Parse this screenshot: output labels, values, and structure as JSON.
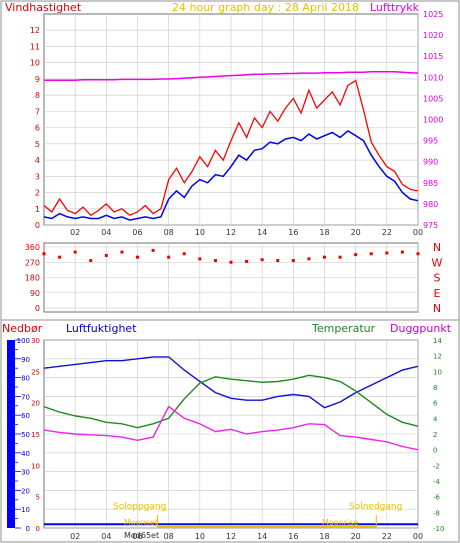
{
  "header": {
    "title": "24 hour graph day : 28 April 2018",
    "left_label": "Vindhastighet",
    "right_label": "Lufttrykk"
  },
  "lower_header": {
    "rain_label": "Nedbør",
    "humidity_label": "Luftfuktighet",
    "temp_label": "Temperatur",
    "dew_label": "Duggpunkt"
  },
  "sun_labels": {
    "rise": "Soloppgang",
    "set": "Solnedgang",
    "moon_rise": "Moonset",
    "moon_set": "Moonrise",
    "moon_marker": "Mod65et"
  },
  "colors": {
    "gust": "#ff0000",
    "wind_avg": "#0000ee",
    "pressure": "#ee00ee",
    "direction": "#ee0000",
    "humidity": "#1010d0",
    "temperature": "#208820",
    "dewpoint": "#ee22ee",
    "rain": "#0000ff",
    "sun": "#e6c000",
    "frame": "#707070",
    "grid": "#c8c8c8"
  },
  "chart_data": [
    {
      "type": "line",
      "name": "wind",
      "x_ticks": [
        "02",
        "04",
        "06",
        "08",
        "10",
        "12",
        "14",
        "16",
        "18",
        "20",
        "22",
        "00"
      ],
      "y_left_ticks": [
        "0",
        "1",
        "2",
        "3",
        "4",
        "5",
        "6",
        "7",
        "8",
        "9",
        "10",
        "11",
        "12"
      ],
      "y_right_ticks": [
        "975",
        "980",
        "985",
        "990",
        "995",
        "1000",
        "1005",
        "1010",
        "1015",
        "1020",
        "1025"
      ],
      "ylim_left": [
        0,
        13
      ],
      "ylim_right": [
        975,
        1025
      ],
      "x_hours": [
        0,
        0.5,
        1,
        1.5,
        2,
        2.5,
        3,
        3.5,
        4,
        4.5,
        5,
        5.5,
        6,
        6.5,
        7,
        7.5,
        8,
        8.5,
        9,
        9.5,
        10,
        10.5,
        11,
        11.5,
        12,
        12.5,
        13,
        13.5,
        14,
        14.5,
        15,
        15.5,
        16,
        16.5,
        17,
        17.5,
        18,
        18.5,
        19,
        19.5,
        20,
        20.5,
        21,
        21.5,
        22,
        22.5,
        23,
        23.5,
        24
      ],
      "series": [
        {
          "key": "gust",
          "values": [
            1.2,
            0.8,
            1.6,
            0.9,
            0.7,
            1.1,
            0.6,
            0.9,
            1.3,
            0.8,
            1.0,
            0.6,
            0.8,
            1.2,
            0.7,
            1.0,
            2.8,
            3.5,
            2.6,
            3.3,
            4.2,
            3.6,
            4.6,
            4.0,
            5.2,
            6.3,
            5.4,
            6.6,
            6.0,
            7.0,
            6.4,
            7.2,
            7.8,
            6.9,
            8.3,
            7.2,
            7.7,
            8.2,
            7.4,
            8.6,
            8.9,
            7.1,
            5.1,
            4.3,
            3.6,
            3.3,
            2.5,
            2.2,
            2.1
          ]
        },
        {
          "key": "wind_avg",
          "values": [
            0.5,
            0.4,
            0.7,
            0.5,
            0.4,
            0.5,
            0.4,
            0.4,
            0.6,
            0.4,
            0.5,
            0.3,
            0.4,
            0.5,
            0.4,
            0.5,
            1.6,
            2.1,
            1.7,
            2.4,
            2.8,
            2.6,
            3.1,
            3.0,
            3.6,
            4.3,
            4.0,
            4.6,
            4.7,
            5.1,
            5.0,
            5.3,
            5.4,
            5.2,
            5.6,
            5.3,
            5.5,
            5.7,
            5.4,
            5.8,
            5.5,
            5.2,
            4.3,
            3.6,
            3.0,
            2.7,
            2.0,
            1.6,
            1.5
          ]
        },
        {
          "key": "pressure",
          "values": [
            1009.3,
            1009.3,
            1009.3,
            1009.3,
            1009.3,
            1009.4,
            1009.4,
            1009.4,
            1009.4,
            1009.4,
            1009.5,
            1009.5,
            1009.5,
            1009.5,
            1009.5,
            1009.6,
            1009.6,
            1009.7,
            1009.8,
            1009.9,
            1010.0,
            1010.1,
            1010.2,
            1010.3,
            1010.4,
            1010.5,
            1010.6,
            1010.7,
            1010.7,
            1010.8,
            1010.8,
            1010.9,
            1010.9,
            1011.0,
            1011.0,
            1011.0,
            1011.1,
            1011.1,
            1011.1,
            1011.2,
            1011.2,
            1011.2,
            1011.3,
            1011.3,
            1011.3,
            1011.3,
            1011.2,
            1011.1,
            1011.0
          ]
        }
      ]
    },
    {
      "type": "scatter",
      "name": "wind_direction",
      "y_ticks": [
        "0",
        "90",
        "180",
        "270",
        "360"
      ],
      "ylim": [
        0,
        360
      ],
      "compass": [
        "N",
        "W",
        "S",
        "E",
        "N"
      ],
      "x_hours": [
        0,
        1,
        2,
        3,
        4,
        5,
        6,
        7,
        8,
        9,
        10,
        11,
        12,
        13,
        14,
        15,
        16,
        17,
        18,
        19,
        20,
        21,
        22,
        23,
        24
      ],
      "values": [
        320,
        300,
        330,
        280,
        310,
        330,
        300,
        340,
        300,
        320,
        290,
        280,
        270,
        275,
        285,
        280,
        280,
        290,
        300,
        300,
        315,
        320,
        325,
        330,
        320
      ]
    },
    {
      "type": "line",
      "name": "climate",
      "x_ticks": [
        "02",
        "04",
        "06",
        "08",
        "10",
        "12",
        "14",
        "16",
        "18",
        "20",
        "22",
        "00"
      ],
      "humidity_ticks": [
        "0",
        "10",
        "20",
        "30",
        "40",
        "50",
        "60",
        "70",
        "80",
        "90",
        "100"
      ],
      "temp_ticks": [
        "-10",
        "-8",
        "-6",
        "-4",
        "-2",
        "0",
        "2",
        "4",
        "6",
        "8",
        "10",
        "12",
        "14"
      ],
      "rain_ticks": [
        "0",
        "5",
        "10",
        "15",
        "20",
        "25",
        "30"
      ],
      "humidity_lim": [
        0,
        100
      ],
      "temp_lim": [
        -10,
        14
      ],
      "x_hours": [
        0,
        1,
        2,
        3,
        4,
        5,
        6,
        7,
        8,
        9,
        10,
        11,
        12,
        13,
        14,
        15,
        16,
        17,
        18,
        19,
        20,
        21,
        22,
        23,
        24
      ],
      "series": [
        {
          "key": "humidity",
          "values": [
            85,
            86,
            87,
            88,
            89,
            89,
            90,
            91,
            91,
            84,
            78,
            72,
            69,
            68,
            68,
            70,
            71,
            70,
            64,
            67,
            72,
            76,
            80,
            84,
            86
          ]
        },
        {
          "key": "temperature",
          "values": [
            5.5,
            4.8,
            4.3,
            4.0,
            3.5,
            3.3,
            2.8,
            3.3,
            4.0,
            6.5,
            8.5,
            9.3,
            9.0,
            8.8,
            8.6,
            8.7,
            9.0,
            9.5,
            9.2,
            8.7,
            7.5,
            6.0,
            4.5,
            3.5,
            3.0
          ]
        },
        {
          "key": "dewpoint",
          "values": [
            2.5,
            2.2,
            2.0,
            1.9,
            1.8,
            1.6,
            1.2,
            1.6,
            5.5,
            4.0,
            3.3,
            2.3,
            2.6,
            2.0,
            2.3,
            2.5,
            2.8,
            3.3,
            3.2,
            1.8,
            1.6,
            1.3,
            1.0,
            0.4,
            0.0
          ]
        },
        {
          "key": "rain",
          "values": [
            0.6,
            0.6,
            0.6,
            0.6,
            0.6,
            0.6,
            0.6,
            0.6,
            0.6,
            0.6,
            0.6,
            0.6,
            0.6,
            0.6,
            0.6,
            0.6,
            0.6,
            0.6,
            0.6,
            0.6,
            0.6,
            0.6,
            0.6,
            0.6,
            0.6
          ]
        }
      ],
      "sunrise_hour": 6,
      "sunset_hour": 21
    }
  ]
}
